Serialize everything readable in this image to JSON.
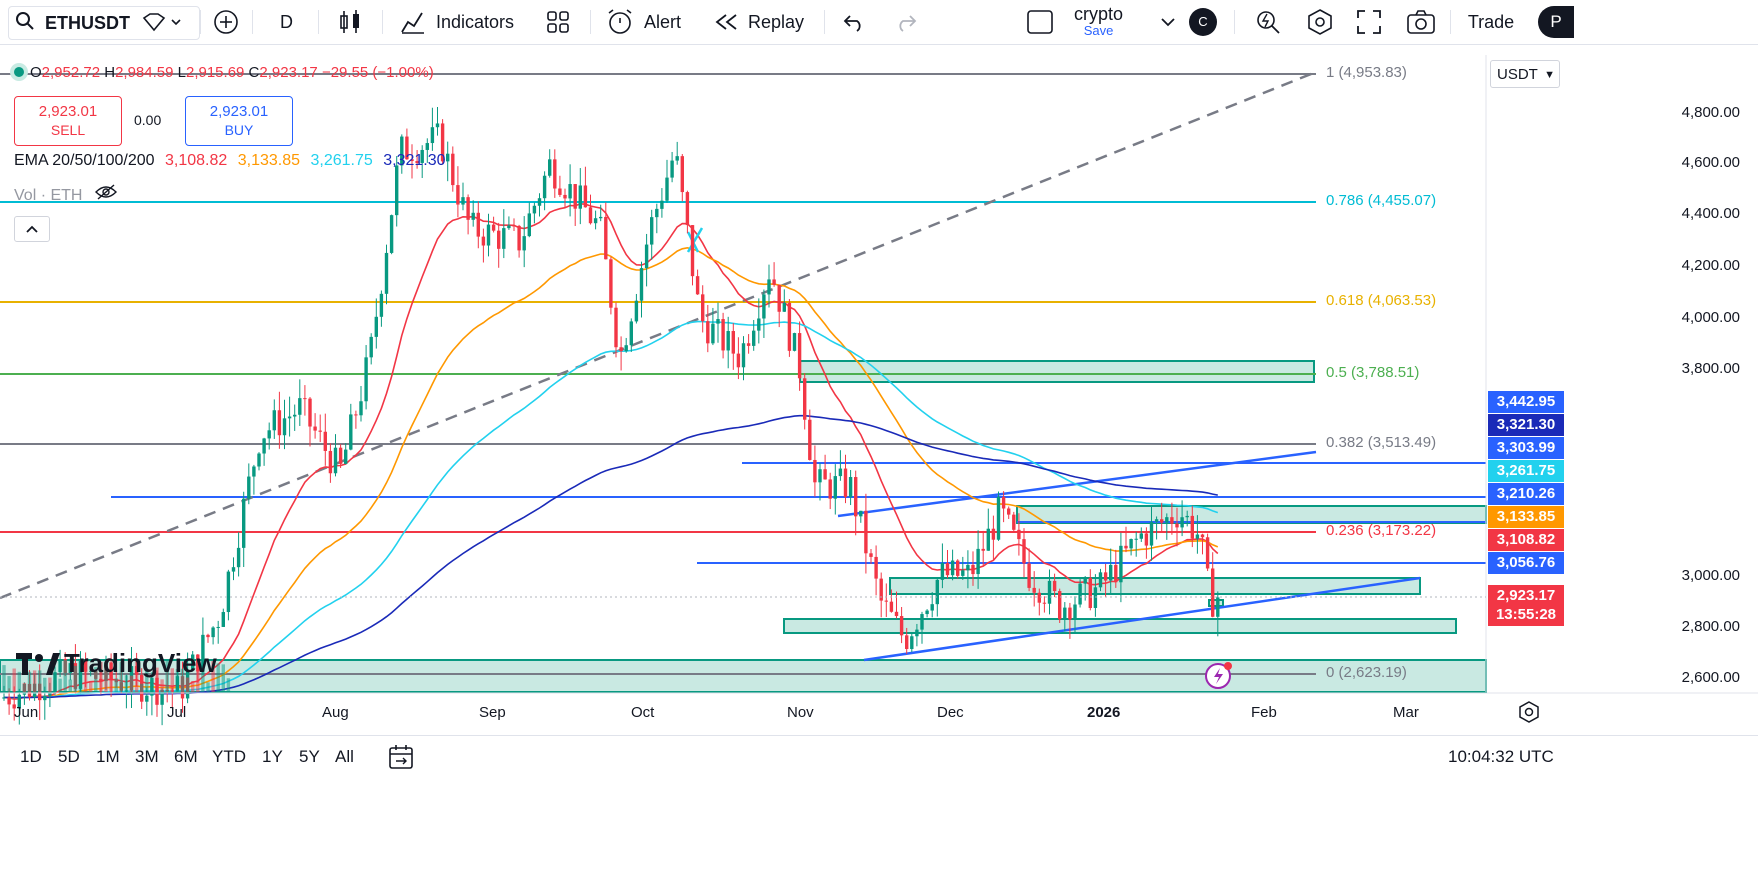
{
  "toolbar": {
    "symbol": "ETHUSDT",
    "interval": "D",
    "indicators": "Indicators",
    "alert": "Alert",
    "replay": "Replay",
    "layout_name": "crypto",
    "layout_save": "Save",
    "avatar_letter": "C",
    "trade": "Trade",
    "profile_letter": "P"
  },
  "legend": {
    "o_label": "O",
    "o": "2,952.72",
    "h_label": "H",
    "h": "2,984.59",
    "l_label": "L",
    "l": "2,915.69",
    "c_label": "C",
    "c": "2,923.17",
    "change": "−29.55 (−1.00%)"
  },
  "trade": {
    "sell_price": "2,923.01",
    "sell_label": "SELL",
    "spread": "0.00",
    "buy_price": "2,923.01",
    "buy_label": "BUY"
  },
  "ema": {
    "label": "EMA 20/50/100/200",
    "v20": "3,108.82",
    "v50": "3,133.85",
    "v100": "3,261.75",
    "v200": "3,321.30"
  },
  "volume": {
    "label": "Vol · ETH"
  },
  "currency": "USDT",
  "price_axis": [
    "4,800.00",
    "4,600.00",
    "4,400.00",
    "4,200.00",
    "4,000.00",
    "3,800.00",
    "3,000.00",
    "2,800.00",
    "2,600.00"
  ],
  "price_tags": [
    {
      "text": "3,442.95",
      "color": "#2962ff"
    },
    {
      "text": "3,321.30",
      "color": "#1a2ab8"
    },
    {
      "text": "3,303.99",
      "color": "#2962ff"
    },
    {
      "text": "3,261.75",
      "color": "#22d1ee"
    },
    {
      "text": "3,210.26",
      "color": "#2962ff"
    },
    {
      "text": "3,133.85",
      "color": "#ff9800"
    },
    {
      "text": "3,108.82",
      "color": "#f23645"
    },
    {
      "text": "3,056.76",
      "color": "#2962ff"
    },
    {
      "text": "2,923.17",
      "color": "#f23645"
    },
    {
      "text": "13:55:28",
      "color": "#f23645"
    }
  ],
  "fib": [
    {
      "level": "1 (4,953.83)",
      "color": "#787b86"
    },
    {
      "level": "0.786 (4,455.07)",
      "color": "#00bcd4"
    },
    {
      "level": "0.618 (4,063.53)",
      "color": "#e8b100"
    },
    {
      "level": "0.5 (3,788.51)",
      "color": "#4caf50"
    },
    {
      "level": "0.382 (3,513.49)",
      "color": "#787b86"
    },
    {
      "level": "0.236 (3,173.22)",
      "color": "#f23645"
    },
    {
      "level": "0 (2,623.19)",
      "color": "#787b86"
    }
  ],
  "time_axis": [
    "Jun",
    "Jul",
    "Aug",
    "Sep",
    "Oct",
    "Nov",
    "Dec",
    "2026",
    "Feb",
    "Mar"
  ],
  "ranges": [
    "1D",
    "5D",
    "1M",
    "3M",
    "6M",
    "YTD",
    "1Y",
    "5Y",
    "All"
  ],
  "clock": "10:04:32 UTC",
  "brand": "TradingView",
  "colors": {
    "up": "#089981",
    "down": "#f23645",
    "blue": "#2962ff"
  }
}
